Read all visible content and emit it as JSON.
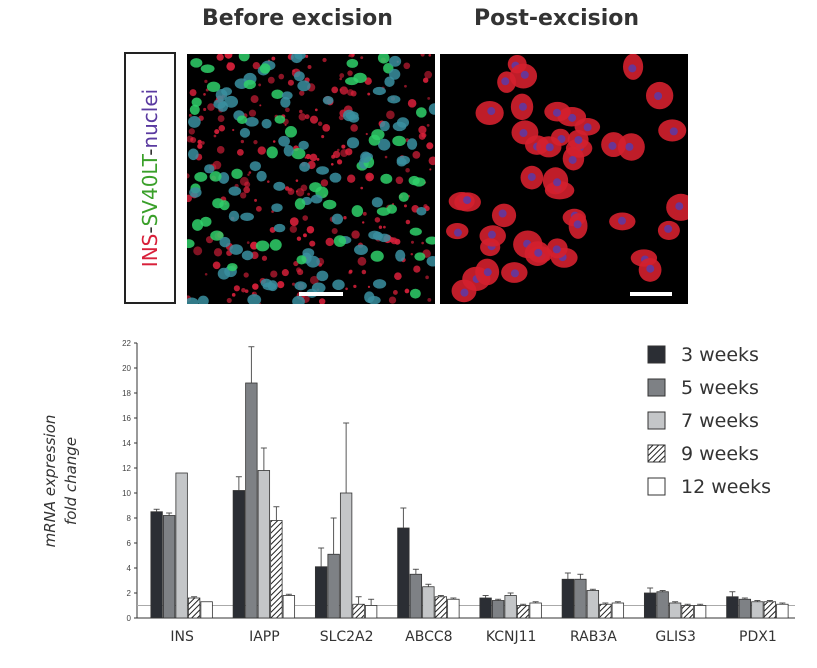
{
  "figure": {
    "panel_titles": {
      "before": "Before excision",
      "after": "Post-excision"
    },
    "stain_label": {
      "part1": "INS",
      "sep1": "-",
      "part2": "SV40LT",
      "sep2": "-",
      "part3": "nuclei"
    },
    "stain_colors": {
      "ins": "#d8203a",
      "sv40lt": "#3aa02a",
      "nuclei": "#5a3aa0"
    }
  },
  "chart_data": {
    "type": "bar",
    "ylabel_line1": "mRNA expression",
    "ylabel_line2": "fold change",
    "ylim": [
      0,
      22
    ],
    "yticks": [
      0,
      2,
      4,
      6,
      8,
      10,
      12,
      14,
      16,
      18,
      20,
      22
    ],
    "reference_line": 1,
    "categories": [
      "INS",
      "IAPP",
      "SLC2A2",
      "ABCC8",
      "KCNJ11",
      "RAB3A",
      "GLIS3",
      "PDX1"
    ],
    "legend_position": "top-right",
    "series": [
      {
        "name": "3 weeks",
        "fill": "#2b2e34",
        "pattern": "solid",
        "values": [
          8.5,
          10.2,
          4.1,
          7.2,
          1.6,
          3.1,
          2.0,
          1.7
        ],
        "errors": [
          0.2,
          1.1,
          1.5,
          1.6,
          0.2,
          0.5,
          0.4,
          0.4
        ]
      },
      {
        "name": "5 weeks",
        "fill": "#7e8185",
        "pattern": "solid",
        "values": [
          8.2,
          18.8,
          5.1,
          3.5,
          1.4,
          3.1,
          2.1,
          1.5
        ],
        "errors": [
          0.2,
          2.9,
          2.9,
          0.4,
          0.1,
          0.4,
          0.1,
          0.1
        ]
      },
      {
        "name": "7 weeks",
        "fill": "#c4c6c8",
        "pattern": "solid",
        "values": [
          11.6,
          11.8,
          10.0,
          2.5,
          1.8,
          2.2,
          1.2,
          1.3
        ],
        "errors": [
          0.0,
          1.8,
          5.6,
          0.2,
          0.2,
          0.1,
          0.1,
          0.1
        ]
      },
      {
        "name": "9 weeks",
        "fill": "#ffffff",
        "pattern": "hatch",
        "values": [
          1.6,
          7.8,
          1.1,
          1.7,
          1.0,
          1.1,
          1.0,
          1.3
        ],
        "errors": [
          0.1,
          1.1,
          0.6,
          0.1,
          0.1,
          0.1,
          0.1,
          0.1
        ]
      },
      {
        "name": "12 weeks",
        "fill": "#ffffff",
        "pattern": "solid",
        "values": [
          1.3,
          1.8,
          1.0,
          1.5,
          1.2,
          1.2,
          1.0,
          1.1
        ],
        "errors": [
          0.0,
          0.1,
          0.5,
          0.1,
          0.1,
          0.1,
          0.1,
          0.1
        ]
      }
    ]
  }
}
